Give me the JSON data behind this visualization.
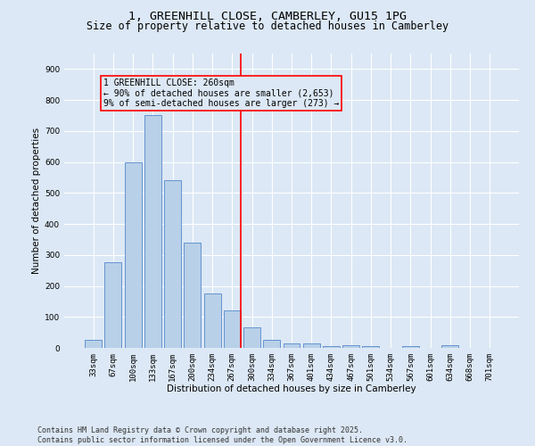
{
  "title": "1, GREENHILL CLOSE, CAMBERLEY, GU15 1PG",
  "subtitle": "Size of property relative to detached houses in Camberley",
  "xlabel": "Distribution of detached houses by size in Camberley",
  "ylabel": "Number of detached properties",
  "categories": [
    "33sqm",
    "67sqm",
    "100sqm",
    "133sqm",
    "167sqm",
    "200sqm",
    "234sqm",
    "267sqm",
    "300sqm",
    "334sqm",
    "367sqm",
    "401sqm",
    "434sqm",
    "467sqm",
    "501sqm",
    "534sqm",
    "567sqm",
    "601sqm",
    "634sqm",
    "668sqm",
    "701sqm"
  ],
  "values": [
    27,
    275,
    600,
    750,
    540,
    340,
    175,
    120,
    67,
    25,
    13,
    13,
    5,
    10,
    5,
    0,
    5,
    0,
    8,
    0,
    0
  ],
  "bar_color": "#b8d0e8",
  "bar_edge_color": "#5588cc",
  "background_color": "#dce8f5",
  "grid_color": "#ffffff",
  "vline_color": "red",
  "annotation_text": "1 GREENHILL CLOSE: 260sqm\n← 90% of detached houses are smaller (2,653)\n9% of semi-detached houses are larger (273) →",
  "ylim": [
    0,
    950
  ],
  "yticks": [
    0,
    100,
    200,
    300,
    400,
    500,
    600,
    700,
    800,
    900
  ],
  "title_fontsize": 9.5,
  "subtitle_fontsize": 8.5,
  "label_fontsize": 7.5,
  "tick_fontsize": 6.5,
  "annotation_fontsize": 7,
  "footer_fontsize": 6
}
